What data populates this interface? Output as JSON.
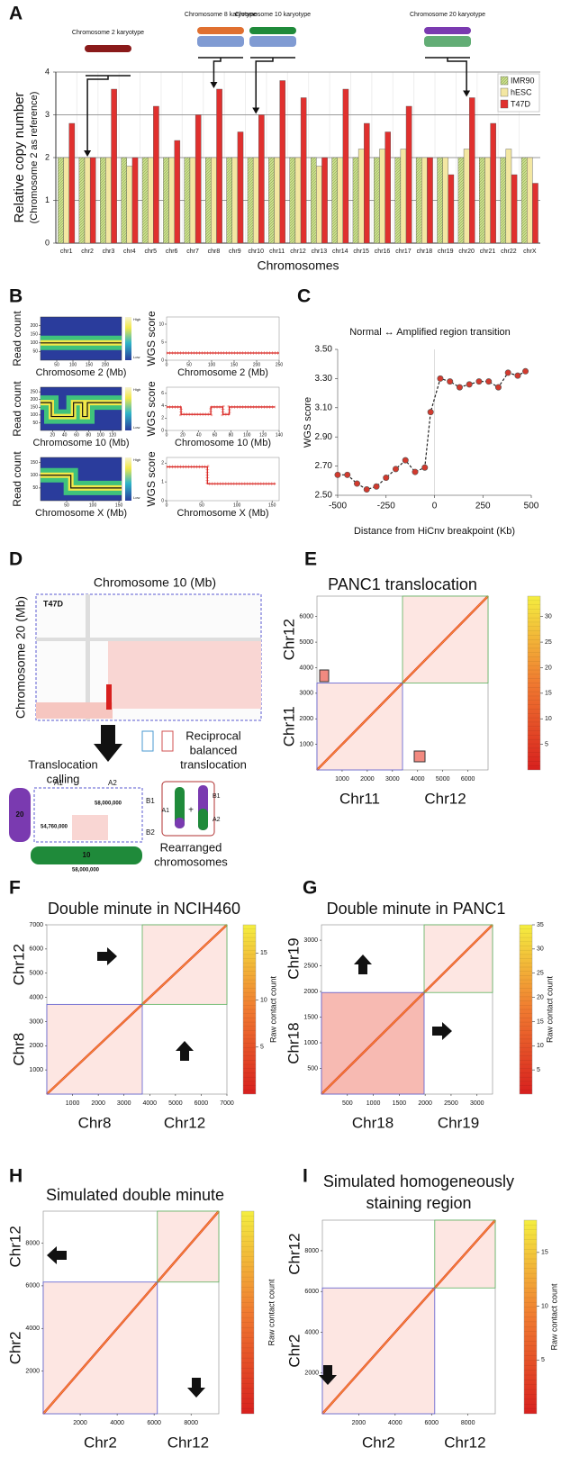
{
  "panel_letters": [
    "A",
    "B",
    "C",
    "D",
    "E",
    "F",
    "G",
    "H",
    "I"
  ],
  "panels": {
    "D": {
      "title": "Chromosome 10 (Mb)",
      "ylabel": "Chromosome 20 (Mb)",
      "sample": "T47D",
      "step": [
        "Translocation",
        "calling"
      ],
      "result": [
        "Reciprocal",
        "balanced",
        "translocation"
      ],
      "outcome": [
        "Rearranged",
        "chromosomes"
      ],
      "segments": [
        "A1",
        "A2",
        "B1",
        "B2"
      ],
      "coords": [
        "58,000,000",
        "54,760,000",
        "58,000,000"
      ],
      "chromosomes": [
        "20",
        "10"
      ],
      "rearranged_labels": [
        "A1",
        "B1",
        "A2"
      ]
    }
  },
  "chart_data": [
    {
      "type": "bar",
      "ylabel": "Relative copy number",
      "ylabel_note": "(Chromosome 2 as reference)",
      "xlabel": "Chromosomes",
      "categories": [
        "chr1",
        "chr2",
        "chr3",
        "chr4",
        "chr5",
        "chr6",
        "chr7",
        "chr8",
        "chr9",
        "chr10",
        "chr11",
        "chr12",
        "chr13",
        "chr14",
        "chr15",
        "chr16",
        "chr17",
        "chr18",
        "chr19",
        "chr20",
        "chr21",
        "chr22",
        "chrX"
      ],
      "series": [
        {
          "name": "IMR90",
          "color": "#c9dd8e",
          "values": [
            2,
            2,
            2,
            2,
            2,
            2,
            2,
            2,
            2,
            2,
            2,
            2,
            2,
            2,
            2,
            2,
            2,
            2,
            2,
            2,
            2,
            2,
            2
          ]
        },
        {
          "name": "hESC",
          "color": "#f3e7a2",
          "values": [
            2,
            2,
            2,
            1.8,
            2,
            2,
            2,
            2,
            2,
            2,
            2,
            2,
            1.8,
            2,
            2.2,
            2.2,
            2.2,
            2,
            2,
            2.2,
            2,
            2.2,
            2
          ]
        },
        {
          "name": "T47D",
          "color": "#e0302e",
          "values": [
            2.8,
            2,
            3.6,
            2,
            3.2,
            2.4,
            3,
            3.6,
            2.6,
            3,
            3.8,
            3.4,
            2,
            3.6,
            2.8,
            2.6,
            3.2,
            2,
            1.6,
            3.4,
            2.8,
            1.6,
            1.4
          ]
        }
      ],
      "ylim": [
        0,
        4
      ],
      "yticks": [
        0,
        1,
        2,
        3,
        4
      ],
      "grid": true,
      "legend": "upper right",
      "annotations": [
        "Chromosome 2 karyotype",
        "Chromosome 8 karyotype",
        "Chromosome 10 karyotype",
        "Chromosome 20 karyotype"
      ]
    },
    {
      "type": "density",
      "ylabel": "Read count",
      "xlabel": "Chromosome 2 (Mb)",
      "colorbar_labels": [
        "High",
        "Low"
      ],
      "x": [
        0,
        250
      ],
      "values": [
        100,
        100
      ],
      "xlim": [
        0,
        250
      ],
      "xticks": [
        50,
        100,
        150,
        200
      ],
      "ylim": [
        0,
        250
      ],
      "yticks": [
        50,
        100,
        150,
        200
      ]
    },
    {
      "type": "step",
      "ylabel": "WGS score",
      "xlabel": "Chromosome 2 (Mb)",
      "x": [
        0,
        250
      ],
      "values": [
        2,
        2
      ],
      "xlim": [
        0,
        250
      ],
      "xticks": [
        0,
        50,
        100,
        150,
        200,
        250
      ],
      "ylim": [
        0,
        12
      ],
      "yticks": [
        0,
        5,
        10
      ]
    },
    {
      "type": "density",
      "ylabel": "Read count",
      "xlabel": "Chromosome 10 (Mb)",
      "colorbar_labels": [
        "High",
        "Low"
      ],
      "x": [
        0,
        18,
        18,
        55,
        55,
        70,
        70,
        78,
        78,
        135
      ],
      "values": [
        180,
        180,
        90,
        90,
        180,
        180,
        90,
        90,
        180,
        180
      ],
      "xlim": [
        0,
        135
      ],
      "xticks": [
        20,
        40,
        60,
        80,
        100,
        120
      ],
      "ylim": [
        0,
        280
      ],
      "yticks": [
        50,
        100,
        150,
        200,
        250
      ]
    },
    {
      "type": "step",
      "ylabel": "WGS score",
      "xlabel": "Chromosome 10 (Mb)",
      "x": [
        0,
        18,
        18,
        55,
        55,
        70,
        70,
        78,
        78,
        135
      ],
      "values": [
        3.8,
        3.8,
        2.6,
        2.6,
        3.8,
        3.8,
        2.6,
        2.6,
        3.8,
        3.8
      ],
      "xlim": [
        0,
        140
      ],
      "xticks": [
        0,
        20,
        40,
        60,
        80,
        100,
        120,
        140
      ],
      "ylim": [
        0,
        7
      ],
      "yticks": [
        0,
        2,
        4,
        6
      ]
    },
    {
      "type": "density",
      "ylabel": "Read count",
      "xlabel": "Chromosome X (Mb)",
      "colorbar_labels": [
        "High",
        "Low"
      ],
      "x": [
        0,
        58,
        58,
        155
      ],
      "values": [
        100,
        100,
        50,
        50
      ],
      "xlim": [
        0,
        155
      ],
      "xticks": [
        50,
        100,
        150
      ],
      "ylim": [
        0,
        170
      ],
      "yticks": [
        50,
        100,
        150
      ]
    },
    {
      "type": "step",
      "ylabel": "WGS score",
      "xlabel": "Chromosome X (Mb)",
      "x": [
        0,
        58,
        58,
        155
      ],
      "values": [
        1.8,
        1.8,
        0.9,
        0.9
      ],
      "xlim": [
        0,
        160
      ],
      "xticks": [
        0,
        50,
        100,
        150
      ],
      "ylim": [
        0,
        2.3
      ],
      "yticks": [
        0,
        1,
        2
      ]
    },
    {
      "type": "line",
      "title": "Normal ↔ Amplified region transition",
      "ylabel": "WGS score",
      "xlabel": "Distance from HiCnv breakpoint (Kb)",
      "x": [
        -500,
        -450,
        -400,
        -350,
        -300,
        -250,
        -200,
        -150,
        -100,
        -50,
        -20,
        30,
        80,
        130,
        180,
        230,
        280,
        330,
        380,
        430,
        470
      ],
      "values": [
        2.64,
        2.64,
        2.58,
        2.54,
        2.56,
        2.62,
        2.68,
        2.74,
        2.66,
        2.69,
        3.07,
        3.3,
        3.28,
        3.24,
        3.26,
        3.28,
        3.28,
        3.24,
        3.34,
        3.32,
        3.35
      ],
      "color": "#d23a2e",
      "xlim": [
        -500,
        500
      ],
      "xticks": [
        -500,
        -250,
        0,
        250,
        500
      ],
      "ylim": [
        2.5,
        3.5
      ],
      "yticks": [
        {
          "value": 2.5,
          "label": "2.50"
        },
        {
          "value": 2.7,
          "label": "2.70"
        },
        {
          "value": 2.9,
          "label": "2.90"
        },
        {
          "value": 3.1,
          "label": "3.10"
        },
        {
          "value": 3.3,
          "label": "3.30"
        },
        {
          "value": 3.5,
          "label": "3.50"
        }
      ]
    },
    {
      "type": "contact-map",
      "title": "PANC1 translocation",
      "x_groups": [
        "Chr11",
        "Chr12"
      ],
      "y_groups": [
        "Chr11",
        "Chr12"
      ],
      "xlim": [
        0,
        6800
      ],
      "xticks": [
        1000,
        2000,
        3000,
        4000,
        5000,
        6000
      ],
      "ylim": [
        0,
        6800
      ],
      "yticks": [
        1000,
        2000,
        3000,
        4000,
        5000,
        6000
      ],
      "clim": [
        0,
        34
      ],
      "cticks": [
        5,
        10,
        15,
        20,
        25,
        30
      ]
    },
    {
      "type": "contact-map",
      "title": "Double minute in NCIH460",
      "x_groups": [
        "Chr8",
        "Chr12"
      ],
      "y_groups": [
        "Chr8",
        "Chr12"
      ],
      "xlim": [
        0,
        7000
      ],
      "xticks": [
        1000,
        2000,
        3000,
        4000,
        5000,
        6000,
        7000
      ],
      "ylim": [
        0,
        7000
      ],
      "yticks": [
        1000,
        2000,
        3000,
        4000,
        5000,
        6000,
        7000
      ],
      "clim": [
        0,
        18
      ],
      "cticks": [
        5,
        10,
        15
      ],
      "colorbar_label": "Raw contact count"
    },
    {
      "type": "contact-map",
      "title": "Double minute in PANC1",
      "x_groups": [
        "Chr18",
        "Chr19"
      ],
      "y_groups": [
        "Chr18",
        "Chr19"
      ],
      "xlim": [
        0,
        3300
      ],
      "xticks": [
        500,
        1000,
        1500,
        2000,
        2500,
        3000
      ],
      "ylim": [
        0,
        3300
      ],
      "yticks": [
        500,
        1000,
        1500,
        2000,
        2500,
        3000
      ],
      "clim": [
        0,
        35
      ],
      "cticks": [
        5,
        10,
        15,
        20,
        25,
        30,
        35
      ],
      "colorbar_label": "Raw contact count"
    },
    {
      "type": "contact-map",
      "title": "Simulated double minute",
      "x_groups": [
        "Chr2",
        "Chr12"
      ],
      "y_groups": [
        "Chr2",
        "Chr12"
      ],
      "xlim": [
        0,
        9500
      ],
      "xticks": [
        2000,
        4000,
        6000,
        8000
      ],
      "ylim": [
        0,
        9500
      ],
      "yticks": [
        2000,
        4000,
        6000,
        8000
      ],
      "colorbar_label": "Raw contact count"
    },
    {
      "type": "contact-map",
      "title": [
        "Simulated homogeneously",
        "staining region"
      ],
      "x_groups": [
        "Chr2",
        "Chr12"
      ],
      "y_groups": [
        "Chr2",
        "Chr12"
      ],
      "xlim": [
        0,
        9500
      ],
      "xticks": [
        2000,
        4000,
        6000,
        8000
      ],
      "ylim": [
        0,
        9500
      ],
      "yticks": [
        2000,
        4000,
        6000,
        8000
      ],
      "clim": [
        0,
        18
      ],
      "cticks": [
        5,
        10,
        15
      ],
      "colorbar_label": "Raw contact count"
    }
  ]
}
